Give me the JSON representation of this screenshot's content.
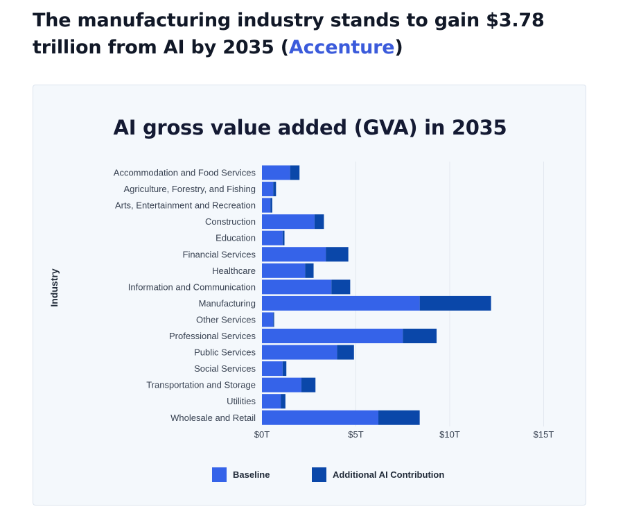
{
  "headline": {
    "text_before": "The manufacturing industry stands to gain $3.78 trillion from AI by 2035 (",
    "link": "Accenture",
    "text_after": ")"
  },
  "colors": {
    "baseline": "#3563e9",
    "ai": "#0a47a9",
    "link": "#3b5bdb"
  },
  "chart_data": {
    "type": "bar",
    "orientation": "horizontal",
    "stacked": true,
    "title": "AI gross value added (GVA) in 2035",
    "xlabel": "",
    "ylabel": "Industry",
    "xlim": [
      0,
      15
    ],
    "xticks": [
      0,
      5,
      10,
      15
    ],
    "xtick_labels": [
      "$0T",
      "$5T",
      "$10T",
      "$15T"
    ],
    "grid": "vertical",
    "categories": [
      "Accommodation and Food Services",
      "Agriculture, Forestry, and Fishing",
      "Arts, Entertainment and Recreation",
      "Construction",
      "Education",
      "Financial Services",
      "Healthcare",
      "Information and Communication",
      "Manufacturing",
      "Other Services",
      "Professional Services",
      "Public Services",
      "Social Services",
      "Transportation and Storage",
      "Utilities",
      "Wholesale and Retail"
    ],
    "series": [
      {
        "name": "Baseline",
        "values": [
          1.5,
          0.6,
          0.45,
          2.8,
          1.1,
          3.4,
          2.3,
          3.7,
          8.4,
          0.6,
          7.5,
          4.0,
          1.1,
          2.1,
          1.0,
          6.2
        ]
      },
      {
        "name": "Additional AI Contribution",
        "values": [
          0.5,
          0.15,
          0.1,
          0.5,
          0.1,
          1.2,
          0.45,
          1.0,
          3.8,
          0.05,
          1.8,
          0.9,
          0.2,
          0.75,
          0.25,
          2.2
        ]
      }
    ],
    "legend": "bottom"
  }
}
